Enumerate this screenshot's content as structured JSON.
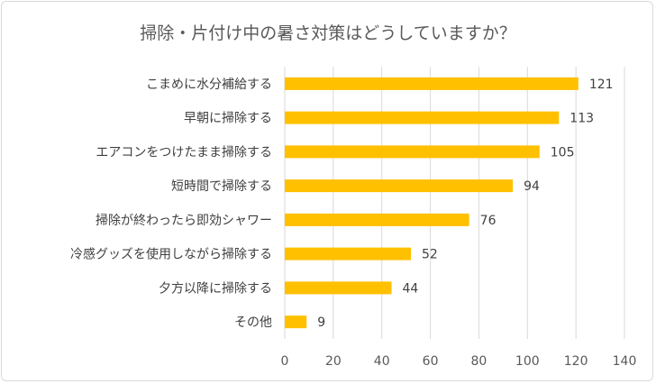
{
  "chart_data": {
    "type": "bar",
    "orientation": "horizontal",
    "title": "掃除・片付け中の暑さ対策はどうしていますか？",
    "categories": [
      "こまめに水分補給する",
      "早朝に掃除する",
      "エアコンをつけたまま掃除する",
      "短時間で掃除する",
      "掃除が終わったら即効シャワー",
      "冷感グッズを使用しながら掃除する",
      "夕方以降に掃除する",
      "その他"
    ],
    "values": [
      121,
      113,
      105,
      94,
      76,
      52,
      44,
      9
    ],
    "xlim": [
      0,
      140
    ],
    "xticks": [
      0,
      20,
      40,
      60,
      80,
      100,
      120,
      140
    ],
    "grid": true,
    "bar_color": "#FFC000",
    "grid_color": "#D9D9D9",
    "data_labels": true
  }
}
